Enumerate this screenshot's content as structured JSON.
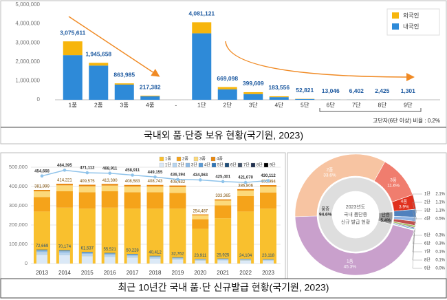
{
  "chart_data": [
    {
      "type": "bar",
      "title": "국내외 품·단증 보유 현황(국기원, 2023)",
      "categories": [
        "1품",
        "2품",
        "3품",
        "4품",
        "-",
        "1단",
        "2단",
        "3단",
        "4단",
        "5단",
        "6단",
        "7단",
        "8단",
        "9단"
      ],
      "series": [
        {
          "name": "외국인",
          "color": "#f7b50c",
          "values": [
            725611,
            145658,
            63985,
            37382,
            null,
            581121,
            119098,
            99609,
            43556,
            12821,
            3046,
            1402,
            425,
            301
          ]
        },
        {
          "name": "내국인",
          "color": "#2e8ad8",
          "values": [
            2350000,
            1800000,
            800000,
            180000,
            null,
            3500000,
            550000,
            300000,
            140000,
            40000,
            10000,
            5000,
            2000,
            1000
          ]
        }
      ],
      "totals": {
        "values": [
          3075611,
          1945658,
          863985,
          217382,
          null,
          4081121,
          669098,
          399609,
          183556,
          52821,
          13046,
          6402,
          2425,
          1301
        ],
        "value_labels": [
          "3,075,611",
          "1,945,658",
          "863,985",
          "217,382",
          null,
          "4,081,121",
          "669,098",
          "399,609",
          "183,556",
          "52,821",
          "13,046",
          "6,402",
          "2,425",
          "1,301"
        ]
      },
      "annotation": "고단자(6단 이상) 비율 : 0.2%",
      "ylim": [
        0,
        5000000
      ],
      "yticks": [
        0,
        {
          "value": 1000000,
          "label": "1,000,000"
        },
        {
          "value": 2000000,
          "label": "2,000,000"
        },
        {
          "value": 3000000,
          "label": "3,000,000"
        },
        {
          "value": 4000000,
          "label": "4,000,000"
        },
        {
          "value": 5000000,
          "label": "5,000,000"
        }
      ],
      "grid": false,
      "legend": "upper right"
    },
    {
      "type": "bar-line",
      "title": "최근 10년간 국내 품·단 신규발급 현황(국기원, 2023)",
      "categories": [
        "2013",
        "2014",
        "2015",
        "2016",
        "2017",
        "2018",
        "2019",
        "2020",
        "2021",
        "2022",
        "2023"
      ],
      "series": [
        {
          "name": "1품",
          "color": "#f9c02e",
          "stack": 0,
          "values": [
            270000,
            290000,
            285000,
            290000,
            285000,
            285000,
            285000,
            180000,
            235000,
            270000,
            285000
          ]
        },
        {
          "name": "2품",
          "color": "#f5a31a",
          "stack": 0,
          "values": [
            75000,
            85000,
            85000,
            85000,
            85000,
            85000,
            82000,
            50000,
            67000,
            80000,
            84000
          ]
        },
        {
          "name": "3품",
          "color": "#fcd97a",
          "stack": 0,
          "values": [
            30000,
            31000,
            31000,
            30000,
            30000,
            30000,
            30000,
            20000,
            25000,
            29000,
            30000
          ]
        },
        {
          "name": "4품",
          "color": "#e8870e",
          "stack": 0,
          "values": [
            7000,
            8000,
            8000,
            8000,
            8000,
            8000,
            8000,
            5000,
            6000,
            7000,
            8000
          ]
        },
        {
          "name": "1단",
          "color": "#dbe9f7",
          "stack": 1,
          "values": [
            45000,
            43000,
            38000,
            34000,
            31000,
            25000,
            20000,
            15000,
            16000,
            15000,
            14000
          ]
        },
        {
          "name": "2단",
          "color": "#b7d4ef",
          "stack": 1,
          "values": [
            15000,
            14000,
            12000,
            11000,
            10000,
            8000,
            6500,
            4700,
            5200,
            4800,
            4600
          ]
        },
        {
          "name": "3단",
          "color": "#8fbbe6",
          "stack": 1,
          "values": [
            7000,
            7000,
            6000,
            6000,
            5000,
            4000,
            3300,
            2400,
            2600,
            2400,
            2300
          ]
        },
        {
          "name": "4단",
          "color": "#5b9bd5",
          "stack": 1,
          "values": [
            3500,
            3500,
            3000,
            2800,
            2500,
            2000,
            1600,
            1200,
            1300,
            1200,
            1200
          ]
        },
        {
          "name": "5단",
          "color": "#2e75b6",
          "stack": 1,
          "values": [
            1500,
            1500,
            1300,
            1200,
            1100,
            900,
            800,
            500,
            600,
            500,
            600
          ]
        },
        {
          "name": "6단",
          "color": "#1f4e79",
          "stack": 1,
          "values": [
            400,
            400,
            350,
            300,
            300,
            250,
            200,
            150,
            150,
            150,
            150
          ]
        },
        {
          "name": "7단",
          "color": "#44546a",
          "stack": 1,
          "values": [
            150,
            150,
            120,
            100,
            100,
            80,
            70,
            50,
            50,
            50,
            50
          ]
        },
        {
          "name": "8단",
          "color": "#203050",
          "stack": 1,
          "values": [
            50,
            50,
            40,
            40,
            30,
            30,
            20,
            20,
            20,
            20,
            20
          ]
        },
        {
          "name": "9단",
          "color": "#000000",
          "stack": 1,
          "values": [
            20,
            20,
            15,
            15,
            10,
            10,
            10,
            5,
            5,
            5,
            5
          ]
        }
      ],
      "pum_totals": {
        "values": [
          381999,
          414221,
          409575,
          413390,
          408583,
          408743,
          405632,
          254487,
          333365,
          386806,
          406994
        ],
        "value_labels": [
          "381,999",
          "414,221",
          "409,575",
          "413,390",
          "408,583",
          "408,743",
          "405,632",
          "254,487",
          "333,365",
          "386,806",
          "406,994"
        ]
      },
      "dan_totals": {
        "values": [
          72669,
          70174,
          61537,
          55521,
          50228,
          40412,
          32762,
          23911,
          25925,
          24104,
          23118
        ],
        "value_labels": [
          "72,669",
          "70,174",
          "61,537",
          "55,521",
          "50,228",
          "40,412",
          "32,762",
          "23,911",
          "25,925",
          "24,104",
          "23,118"
        ]
      },
      "line": {
        "color": "#8fc3ea",
        "values": [
          454668,
          484395,
          471112,
          468911,
          458911,
          449155,
          436394,
          434063,
          425401,
          421070,
          430112
        ],
        "value_labels": [
          "454,668",
          "484,395",
          "471,112",
          "468,911",
          "458,911",
          "449,155",
          "436,394",
          "434,063",
          "425,401",
          "421,070",
          "430,112"
        ]
      },
      "ylim": [
        0,
        500000
      ],
      "yticks": [
        0,
        {
          "value": 100000,
          "label": "100,000"
        },
        {
          "value": 200000,
          "label": "200,000"
        },
        {
          "value": 300000,
          "label": "300,000"
        },
        {
          "value": 400000,
          "label": "400,000"
        },
        {
          "value": 500000,
          "label": "500,000"
        }
      ],
      "grid": true,
      "legend": "top"
    },
    {
      "type": "donut",
      "title_lines": [
        "2023년도",
        "국내 품단증",
        "신규 발급 현황"
      ],
      "outer": {
        "categories": [
          "1품",
          "2품",
          "3품",
          "4품",
          "1단",
          "2단",
          "3단",
          "4단",
          "5단",
          "6단",
          "7단",
          "8단",
          "9단"
        ],
        "values": [
          45.3,
          33.6,
          11.6,
          3.9,
          2.1,
          1.1,
          1.1,
          0.5,
          0.3,
          0.3,
          0.1,
          0.1,
          0.0
        ],
        "value_labels": [
          "45.3%",
          "33.6%",
          "11.6%",
          "3.9%",
          "2.1%",
          "1.1%",
          "1.1%",
          "0.5%",
          "0.3%",
          "0.3%",
          "0.1%",
          "0.1%",
          "0.0%"
        ],
        "colors": [
          "#c9a0cc",
          "#f7c4a2",
          "#f07d6e",
          "#e0301e",
          "#4f81bd",
          "#8eb4e3",
          "#c0504d",
          "#9bbb59",
          "#8064a2",
          "#4bacc6",
          "#f79646",
          "#2c4d75",
          "#772c2a"
        ]
      },
      "inner": {
        "categories": [
          "품증",
          "단증"
        ],
        "values": [
          94.6,
          5.4
        ],
        "value_labels": [
          "94.6%",
          "5.4%"
        ],
        "colors": [
          "#dedede",
          "#9a9a9a"
        ]
      }
    }
  ]
}
